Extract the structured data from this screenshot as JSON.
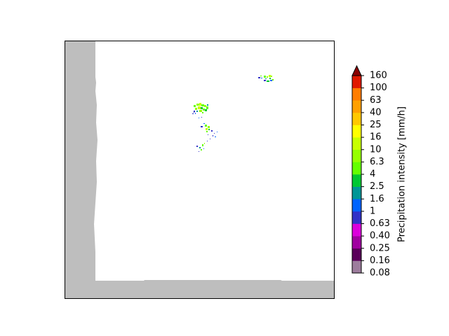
{
  "chart_data": {
    "type": "heatmap",
    "title": "",
    "xlabel": "",
    "ylabel": "",
    "colorbar": {
      "label": "Precipitation intensity [mm/h]",
      "ticks": [
        "0.08",
        "0.16",
        "0.25",
        "0.40",
        "0.63",
        "1",
        "1.6",
        "2.5",
        "4",
        "6.3",
        "10",
        "16",
        "25",
        "40",
        "63",
        "100",
        "160"
      ],
      "colors": [
        "#9d7d9d",
        "#5a005a",
        "#a000a0",
        "#dc00dc",
        "#3232c8",
        "#0064ff",
        "#009696",
        "#00c832",
        "#64ff00",
        "#96ff00",
        "#c8ff00",
        "#ffff00",
        "#ffc800",
        "#ffa000",
        "#ff7d00",
        "#e11900"
      ],
      "extend_color": "#8b0000"
    },
    "mask_color": "#bebebe",
    "rain_cells": [
      {
        "name": "northeast cell",
        "level": "1-6.3 mm/h"
      },
      {
        "name": "central cell",
        "level": "1-6.3 mm/h"
      },
      {
        "name": "south-central cell",
        "level": "1-4 mm/h"
      },
      {
        "name": "southern cell",
        "level": "1-4 mm/h"
      }
    ]
  }
}
